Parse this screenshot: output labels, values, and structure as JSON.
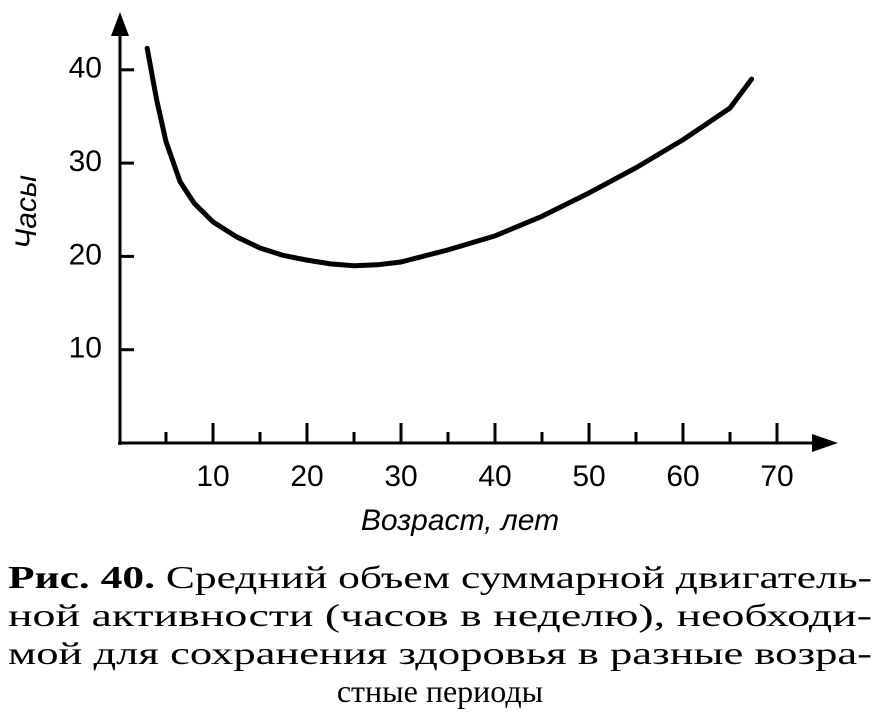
{
  "chart_data": {
    "type": "line",
    "x_label": "Возраст, лет",
    "y_label": "Часы",
    "x": [
      3,
      4,
      5,
      6.5,
      8,
      10,
      12.5,
      15,
      17.5,
      20,
      22.5,
      25,
      27.5,
      30,
      35,
      40,
      45,
      50,
      55,
      60,
      65,
      67.3
    ],
    "series": [
      {
        "color": "#000000",
        "values": [
          42.3,
          36.8,
          32.3,
          28.0,
          25.7,
          23.7,
          22.1,
          20.9,
          20.1,
          19.6,
          19.2,
          19.0,
          19.1,
          19.4,
          20.7,
          22.2,
          24.3,
          26.8,
          29.5,
          32.5,
          35.9,
          39.0
        ]
      }
    ],
    "xlim": [
      0,
      76
    ],
    "ylim": [
      0,
      46
    ],
    "xticks": [
      10,
      20,
      30,
      40,
      50,
      60,
      70
    ],
    "xminorticks": [
      5,
      15,
      25,
      35,
      45,
      55,
      65
    ],
    "yticks": [
      10,
      20,
      30,
      40
    ],
    "caption": {
      "label": "Рис. 40.",
      "lines": [
        "Средний объем суммарной двигатель-",
        "ной активности (часов в неделю), необходи-",
        "мой для сохранения здоровья в разные возра-",
        "стные периоды"
      ]
    }
  }
}
